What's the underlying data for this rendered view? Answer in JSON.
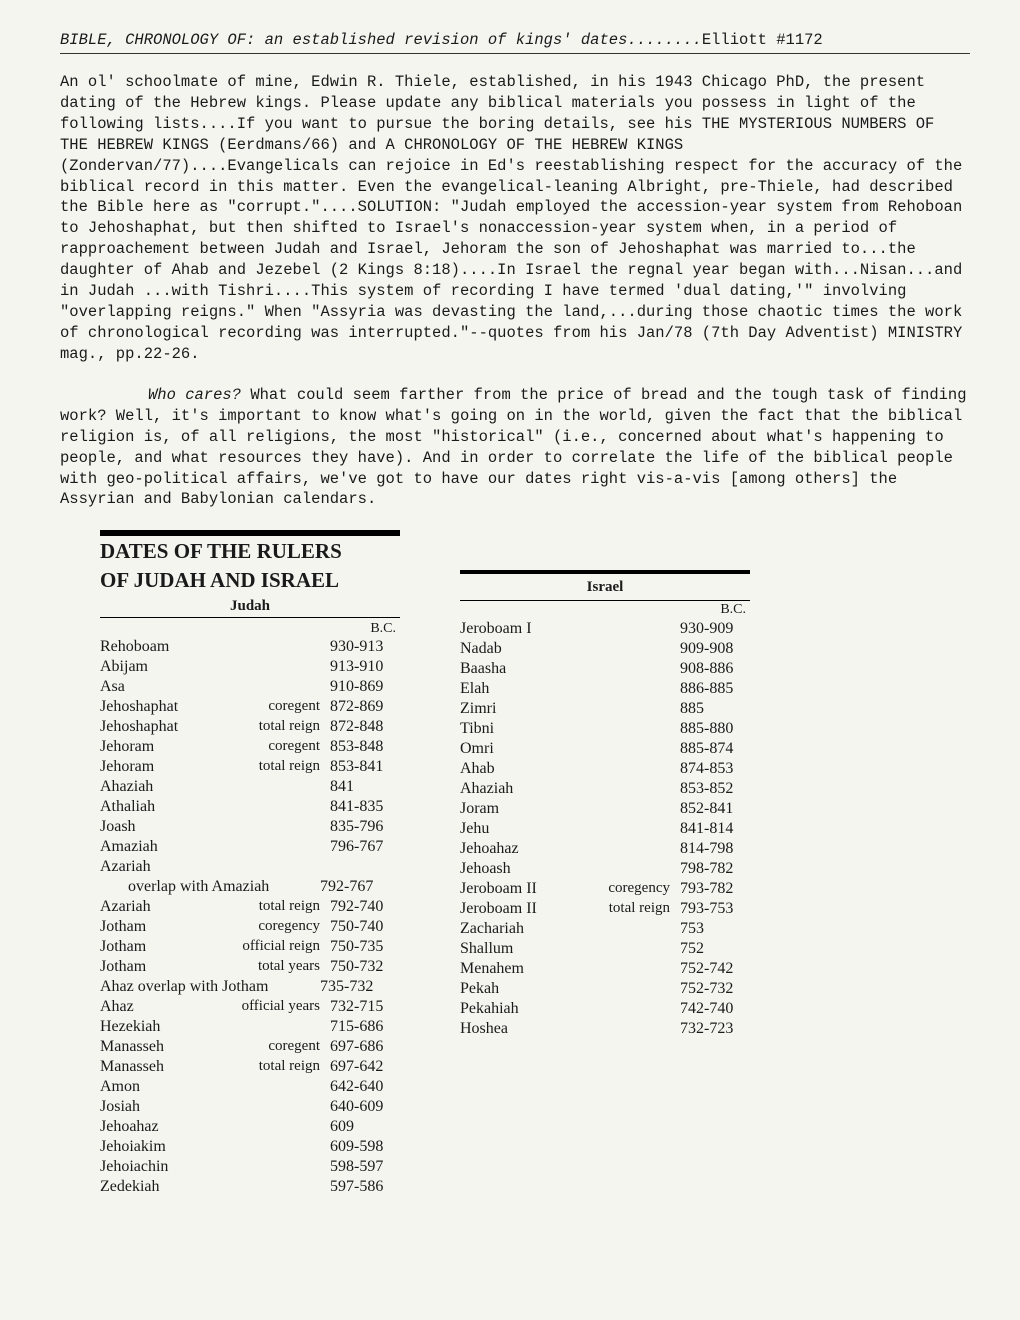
{
  "title_prefix": "BIBLE, CHRONOLOGY OF: an established revision of kings' dates........",
  "title_suffix": "Elliott #1172",
  "para1": "An ol' schoolmate of mine, Edwin R. Thiele, established, in his 1943 Chicago PhD, the present dating of the Hebrew kings.  Please update any biblical materials you possess in light of the following lists....If you want to pursue the boring details, see his THE MYSTERIOUS NUMBERS OF THE HEBREW KINGS (Eerdmans/66) and A CHRONOLOGY OF THE HEBREW KINGS (Zondervan/77)....Evangelicals can rejoice in Ed's reestablishing respect for the accuracy of the biblical record in this matter.  Even the evangelical-leaning Albright, pre-Thiele, had described the Bible here as \"corrupt.\"....SOLUTION: \"Judah employed the accession-year system from Rehoboan to Jehoshaphat, but then shifted to Israel's nonaccession-year system when, in a period of rapproachement between Judah and Israel, Jehoram the son of Jehoshaphat was married to...the daughter of Ahab and Jezebel (2 Kings 8:18)....In Israel the regnal year began with...Nisan...and in Judah ...with Tishri....This system of recording I have termed 'dual dating,'\" involving \"overlapping reigns.\"  When \"Assyria was devasting the land,...during those chaotic times the work of chronological recording was interrupted.\"--quotes from his Jan/78 (7th Day Adventist) MINISTRY mag., pp.22-26.",
  "para2_lead": "Who cares?",
  "para2_rest": "  What could seem farther from the price of bread and the tough task of finding work?  Well, it's important to know what's going on in the world, given the fact that the biblical religion is, of all religions, the most \"historical\" (i.e., concerned about what's happening to people, and what resources they have).  And in order to correlate the life of the biblical people with geo-political affairs, we've got to have our dates right vis-a-vis [among others] the Assyrian and Babylonian calendars.",
  "judah": {
    "header1": "DATES OF THE RULERS",
    "header2": "OF JUDAH AND ISRAEL",
    "sub": "Judah",
    "bc": "B.C.",
    "rows": [
      {
        "n": "Rehoboam",
        "q": "",
        "d": "930-913"
      },
      {
        "n": "Abijam",
        "q": "",
        "d": "913-910"
      },
      {
        "n": "Asa",
        "q": "",
        "d": "910-869"
      },
      {
        "n": "Jehoshaphat",
        "q": "coregent",
        "d": "872-869"
      },
      {
        "n": "Jehoshaphat",
        "q": "total reign",
        "d": "872-848"
      },
      {
        "n": "Jehoram",
        "q": "coregent",
        "d": "853-848"
      },
      {
        "n": "Jehoram",
        "q": "total reign",
        "d": "853-841"
      },
      {
        "n": "Ahaziah",
        "q": "",
        "d": "841"
      },
      {
        "n": "Athaliah",
        "q": "",
        "d": "841-835"
      },
      {
        "n": "Joash",
        "q": "",
        "d": "835-796"
      },
      {
        "n": "Amaziah",
        "q": "",
        "d": "796-767"
      },
      {
        "n": "Azariah",
        "q": "",
        "d": ""
      },
      {
        "wide": "       overlap with Amaziah",
        "d": "792-767"
      },
      {
        "n": "Azariah",
        "q": "total reign",
        "d": "792-740"
      },
      {
        "n": "Jotham",
        "q": "coregency",
        "d": "750-740"
      },
      {
        "n": "Jotham",
        "q": "official reign",
        "d": "750-735"
      },
      {
        "n": "Jotham",
        "q": "total years",
        "d": "750-732"
      },
      {
        "wide": "Ahaz overlap with Jotham",
        "d": "735-732"
      },
      {
        "n": "Ahaz",
        "q": "official years",
        "d": "732-715"
      },
      {
        "n": "Hezekiah",
        "q": "",
        "d": "715-686"
      },
      {
        "n": "Manasseh",
        "q": "coregent",
        "d": "697-686"
      },
      {
        "n": "Manasseh",
        "q": "total reign",
        "d": "697-642"
      },
      {
        "n": "Amon",
        "q": "",
        "d": "642-640"
      },
      {
        "n": "Josiah",
        "q": "",
        "d": "640-609"
      },
      {
        "n": "Jehoahaz",
        "q": "",
        "d": "609"
      },
      {
        "n": "Jehoiakim",
        "q": "",
        "d": "609-598"
      },
      {
        "n": "Jehoiachin",
        "q": "",
        "d": "598-597"
      },
      {
        "n": "Zedekiah",
        "q": "",
        "d": "597-586"
      }
    ]
  },
  "israel": {
    "sub": "Israel",
    "bc": "B.C.",
    "rows": [
      {
        "n": "Jeroboam I",
        "q": "",
        "d": "930-909"
      },
      {
        "n": "Nadab",
        "q": "",
        "d": "909-908"
      },
      {
        "n": "Baasha",
        "q": "",
        "d": "908-886"
      },
      {
        "n": "Elah",
        "q": "",
        "d": "886-885"
      },
      {
        "n": "Zimri",
        "q": "",
        "d": "885"
      },
      {
        "n": "Tibni",
        "q": "",
        "d": "885-880"
      },
      {
        "n": "Omri",
        "q": "",
        "d": "885-874"
      },
      {
        "n": "Ahab",
        "q": "",
        "d": "874-853"
      },
      {
        "n": "Ahaziah",
        "q": "",
        "d": "853-852"
      },
      {
        "n": "Joram",
        "q": "",
        "d": "852-841"
      },
      {
        "n": "Jehu",
        "q": "",
        "d": "841-814"
      },
      {
        "n": "Jehoahaz",
        "q": "",
        "d": "814-798"
      },
      {
        "n": "Jehoash",
        "q": "",
        "d": "798-782"
      },
      {
        "n": "Jeroboam II",
        "q": "coregency",
        "d": "793-782"
      },
      {
        "n": "Jeroboam II",
        "q": "total reign",
        "d": "793-753"
      },
      {
        "n": "Zachariah",
        "q": "",
        "d": "753"
      },
      {
        "n": "Shallum",
        "q": "",
        "d": "752"
      },
      {
        "n": "Menahem",
        "q": "",
        "d": "752-742"
      },
      {
        "n": "Pekah",
        "q": "",
        "d": "752-732"
      },
      {
        "n": "Pekahiah",
        "q": "",
        "d": "742-740"
      },
      {
        "n": "Hoshea",
        "q": "",
        "d": "732-723"
      }
    ]
  }
}
